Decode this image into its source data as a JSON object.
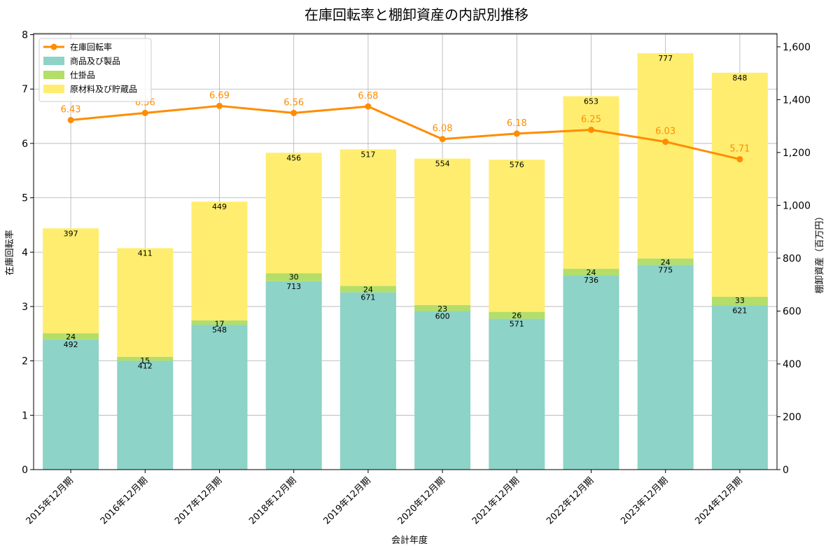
{
  "chart_data": {
    "type": "bar",
    "title": "在庫回転率と棚卸資産の内訳別推移",
    "xlabel": "会計年度",
    "ylabel_left": "在庫回転率",
    "ylabel_right": "棚卸資産（百万円）",
    "categories": [
      "2015年12月期",
      "2016年12月期",
      "2017年12月期",
      "2018年12月期",
      "2019年12月期",
      "2020年12月期",
      "2021年12月期",
      "2022年12月期",
      "2023年12月期",
      "2024年12月期"
    ],
    "bar_series": [
      {
        "name": "商品及び製品",
        "color": "#8dd3c7",
        "values": [
          492,
          412,
          548,
          713,
          671,
          600,
          571,
          736,
          775,
          621
        ]
      },
      {
        "name": "仕掛品",
        "color": "#b3de69",
        "values": [
          24,
          15,
          17,
          30,
          24,
          23,
          26,
          24,
          24,
          33
        ]
      },
      {
        "name": "原材料及び貯蔵品",
        "color": "#ffed6f",
        "values": [
          397,
          411,
          449,
          456,
          517,
          554,
          576,
          653,
          777,
          848
        ]
      }
    ],
    "line_series": {
      "name": "在庫回転率",
      "color": "#ff8c00",
      "values": [
        6.43,
        6.56,
        6.69,
        6.56,
        6.68,
        6.08,
        6.18,
        6.25,
        6.03,
        5.71
      ]
    },
    "ylim_left": [
      0,
      8.02
    ],
    "ylim_right": [
      0,
      1650
    ],
    "yticks_left": [
      "0",
      "1",
      "2",
      "3",
      "4",
      "5",
      "6",
      "7",
      "8"
    ],
    "yticks_right": [
      "0",
      "200",
      "400",
      "600",
      "800",
      "1,000",
      "1,200",
      "1,400",
      "1,600"
    ],
    "grid": true,
    "legend_position": "top-left"
  }
}
